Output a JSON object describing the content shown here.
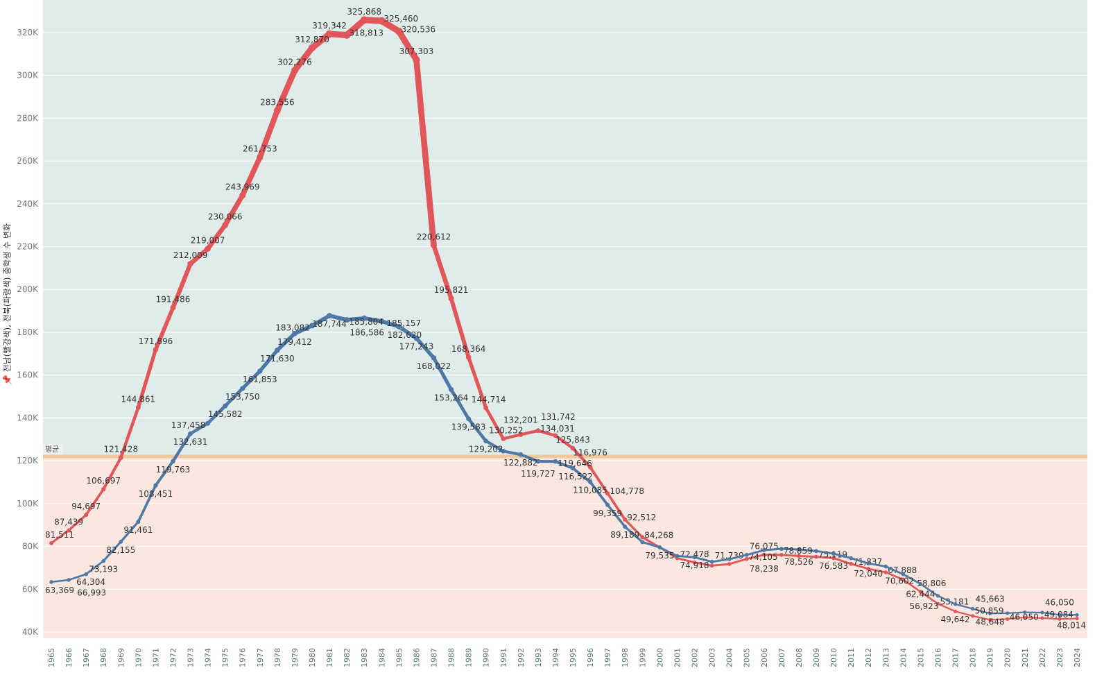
{
  "chart_data": {
    "type": "line",
    "title": "",
    "ylabel": "전남(빨강색), 전북(파랑색) 중학생 수 변화",
    "pin_icon": "pin-icon",
    "ylim": [
      40000,
      330000
    ],
    "yticks": [
      40000,
      60000,
      80000,
      100000,
      120000,
      140000,
      160000,
      180000,
      200000,
      220000,
      240000,
      260000,
      280000,
      300000,
      320000
    ],
    "ytick_labels": [
      "40K",
      "60K",
      "80K",
      "100K",
      "120K",
      "140K",
      "160K",
      "180K",
      "200K",
      "220K",
      "240K",
      "260K",
      "280K",
      "300K",
      "320K"
    ],
    "x": [
      1965,
      1966,
      1967,
      1968,
      1969,
      1970,
      1971,
      1972,
      1973,
      1974,
      1975,
      1976,
      1977,
      1978,
      1979,
      1980,
      1981,
      1982,
      1983,
      1984,
      1985,
      1986,
      1987,
      1988,
      1989,
      1990,
      1991,
      1992,
      1993,
      1994,
      1995,
      1996,
      1997,
      1998,
      1999,
      2000,
      2001,
      2002,
      2003,
      2004,
      2005,
      2006,
      2007,
      2008,
      2009,
      2010,
      2011,
      2012,
      2013,
      2014,
      2015,
      2016,
      2017,
      2018,
      2019,
      2020,
      2021,
      2022,
      2023,
      2024
    ],
    "reference_line": {
      "label": "평균",
      "value": 122000,
      "color": "#f0c8a0"
    },
    "band_colors": {
      "above": "#dfece9",
      "below": "#f9e7e0"
    },
    "series": [
      {
        "name": "전남",
        "color": "#e15759",
        "values": [
          81511,
          87439,
          94697,
          106697,
          121428,
          144861,
          171896,
          191486,
          212009,
          219007,
          230066,
          243969,
          261753,
          283556,
          302276,
          312870,
          319342,
          318813,
          325868,
          325460,
          320536,
          307303,
          220612,
          195821,
          168364,
          144714,
          130252,
          132201,
          134031,
          131742,
          125843,
          116976,
          104778,
          92512,
          84268,
          79500,
          74500,
          72478,
          71000,
          71739,
          74105,
          76075,
          76000,
          75500,
          75119,
          74500,
          71837,
          69500,
          67888,
          64500,
          58806,
          53181,
          49642,
          47500,
          45663,
          46050,
          46800,
          46500,
          46050,
          46300
        ],
        "labels": [
          "81,511",
          "87,439",
          "94,697",
          "106,697",
          "121,428",
          "144,861",
          "171,896",
          "191,486",
          "212,009",
          "219,007",
          "230,066",
          "243,969",
          "261,753",
          "283,556",
          "302,276",
          "312,870",
          "319,342",
          "318,813",
          "325,868",
          "325,460",
          "320,536",
          "307,303",
          "220,612",
          "195,821",
          "168,364",
          "144,714",
          "130,252",
          "132,201",
          "134,031",
          "131,742",
          "125,843",
          "116,976",
          "104,778",
          "92,512",
          "84,268",
          "",
          "",
          "72,478",
          "",
          "71,739",
          "74,105",
          "76,075",
          "",
          "",
          "75,119",
          "",
          "71,837",
          "",
          "67,888",
          "",
          "58,806",
          "53,181",
          "49,642",
          "",
          "45,663",
          "46,050",
          "",
          "",
          "46,050",
          ""
        ]
      },
      {
        "name": "전북",
        "color": "#4e79a7",
        "values": [
          63369,
          64304,
          66993,
          73193,
          82155,
          91461,
          108451,
          119763,
          132631,
          137458,
          145582,
          153750,
          161853,
          171630,
          179412,
          183082,
          187744,
          185804,
          186586,
          185157,
          182620,
          177243,
          168022,
          153264,
          139583,
          129202,
          124500,
          122882,
          119727,
          119646,
          116522,
          110085,
          99359,
          89189,
          82000,
          79535,
          75500,
          74918,
          72800,
          74000,
          76000,
          78238,
          78859,
          78526,
          77800,
          76583,
          74500,
          72040,
          70602,
          67000,
          62444,
          56923,
          53000,
          50859,
          48648,
          48800,
          49200,
          49084,
          48000,
          48014
        ],
        "labels": [
          "63,369",
          "64,304",
          "66,993",
          "73,193",
          "82,155",
          "91,461",
          "108,451",
          "119,763",
          "132,631",
          "137,458",
          "145,582",
          "153,750",
          "161,853",
          "171,630",
          "179,412",
          "183,082",
          "187,744",
          "185,804",
          "186,586",
          "185,157",
          "182,620",
          "177,243",
          "168,022",
          "153,264",
          "139,583",
          "129,202",
          "",
          "122,882",
          "119,727",
          "119,646",
          "116,522",
          "110,085",
          "99,359",
          "89,189",
          "",
          "79,535",
          "",
          "74,918",
          "",
          "",
          "",
          "78,238",
          "78,859",
          "78,526",
          "",
          "76,583",
          "",
          "72,040",
          "70,602",
          "",
          "62,444",
          "56,923",
          "",
          "50,859",
          "48,648",
          "",
          "",
          "49,084",
          "",
          "48,014"
        ]
      }
    ]
  }
}
